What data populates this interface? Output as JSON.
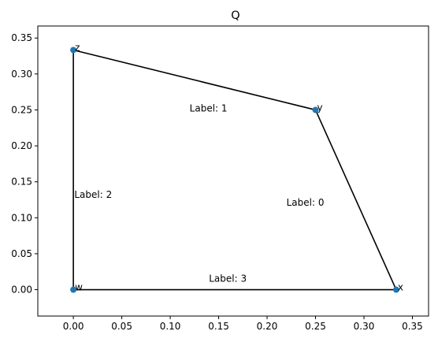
{
  "chart_data": {
    "type": "scatter",
    "title": "Q",
    "xlabel": "",
    "ylabel": "",
    "xlim": [
      -0.0367,
      0.3667
    ],
    "ylim": [
      -0.0367,
      0.3667
    ],
    "grid": false,
    "point_color": "#1f77b4",
    "edge_color": "#000000",
    "x_ticks": [
      "0.00",
      "0.05",
      "0.10",
      "0.15",
      "0.20",
      "0.25",
      "0.30",
      "0.35"
    ],
    "y_ticks": [
      "0.00",
      "0.05",
      "0.10",
      "0.15",
      "0.20",
      "0.25",
      "0.30",
      "0.35"
    ],
    "nodes": [
      {
        "label": "x",
        "x": 0.3333,
        "y": 0.0
      },
      {
        "label": "y",
        "x": 0.25,
        "y": 0.25
      },
      {
        "label": "z",
        "x": 0.0,
        "y": 0.3333
      },
      {
        "label": "w",
        "x": 0.0,
        "y": 0.0
      }
    ],
    "edges": [
      {
        "from": "x",
        "to": "y",
        "label": "Label: 0",
        "label_x": 0.22,
        "label_y": 0.117
      },
      {
        "from": "y",
        "to": "z",
        "label": "Label: 1",
        "label_x": 0.12,
        "label_y": 0.248
      },
      {
        "from": "z",
        "to": "w",
        "label": "Label: 2",
        "label_x": 0.001,
        "label_y": 0.128
      },
      {
        "from": "w",
        "to": "x",
        "label": "Label: 3",
        "label_x": 0.14,
        "label_y": 0.011
      }
    ]
  }
}
